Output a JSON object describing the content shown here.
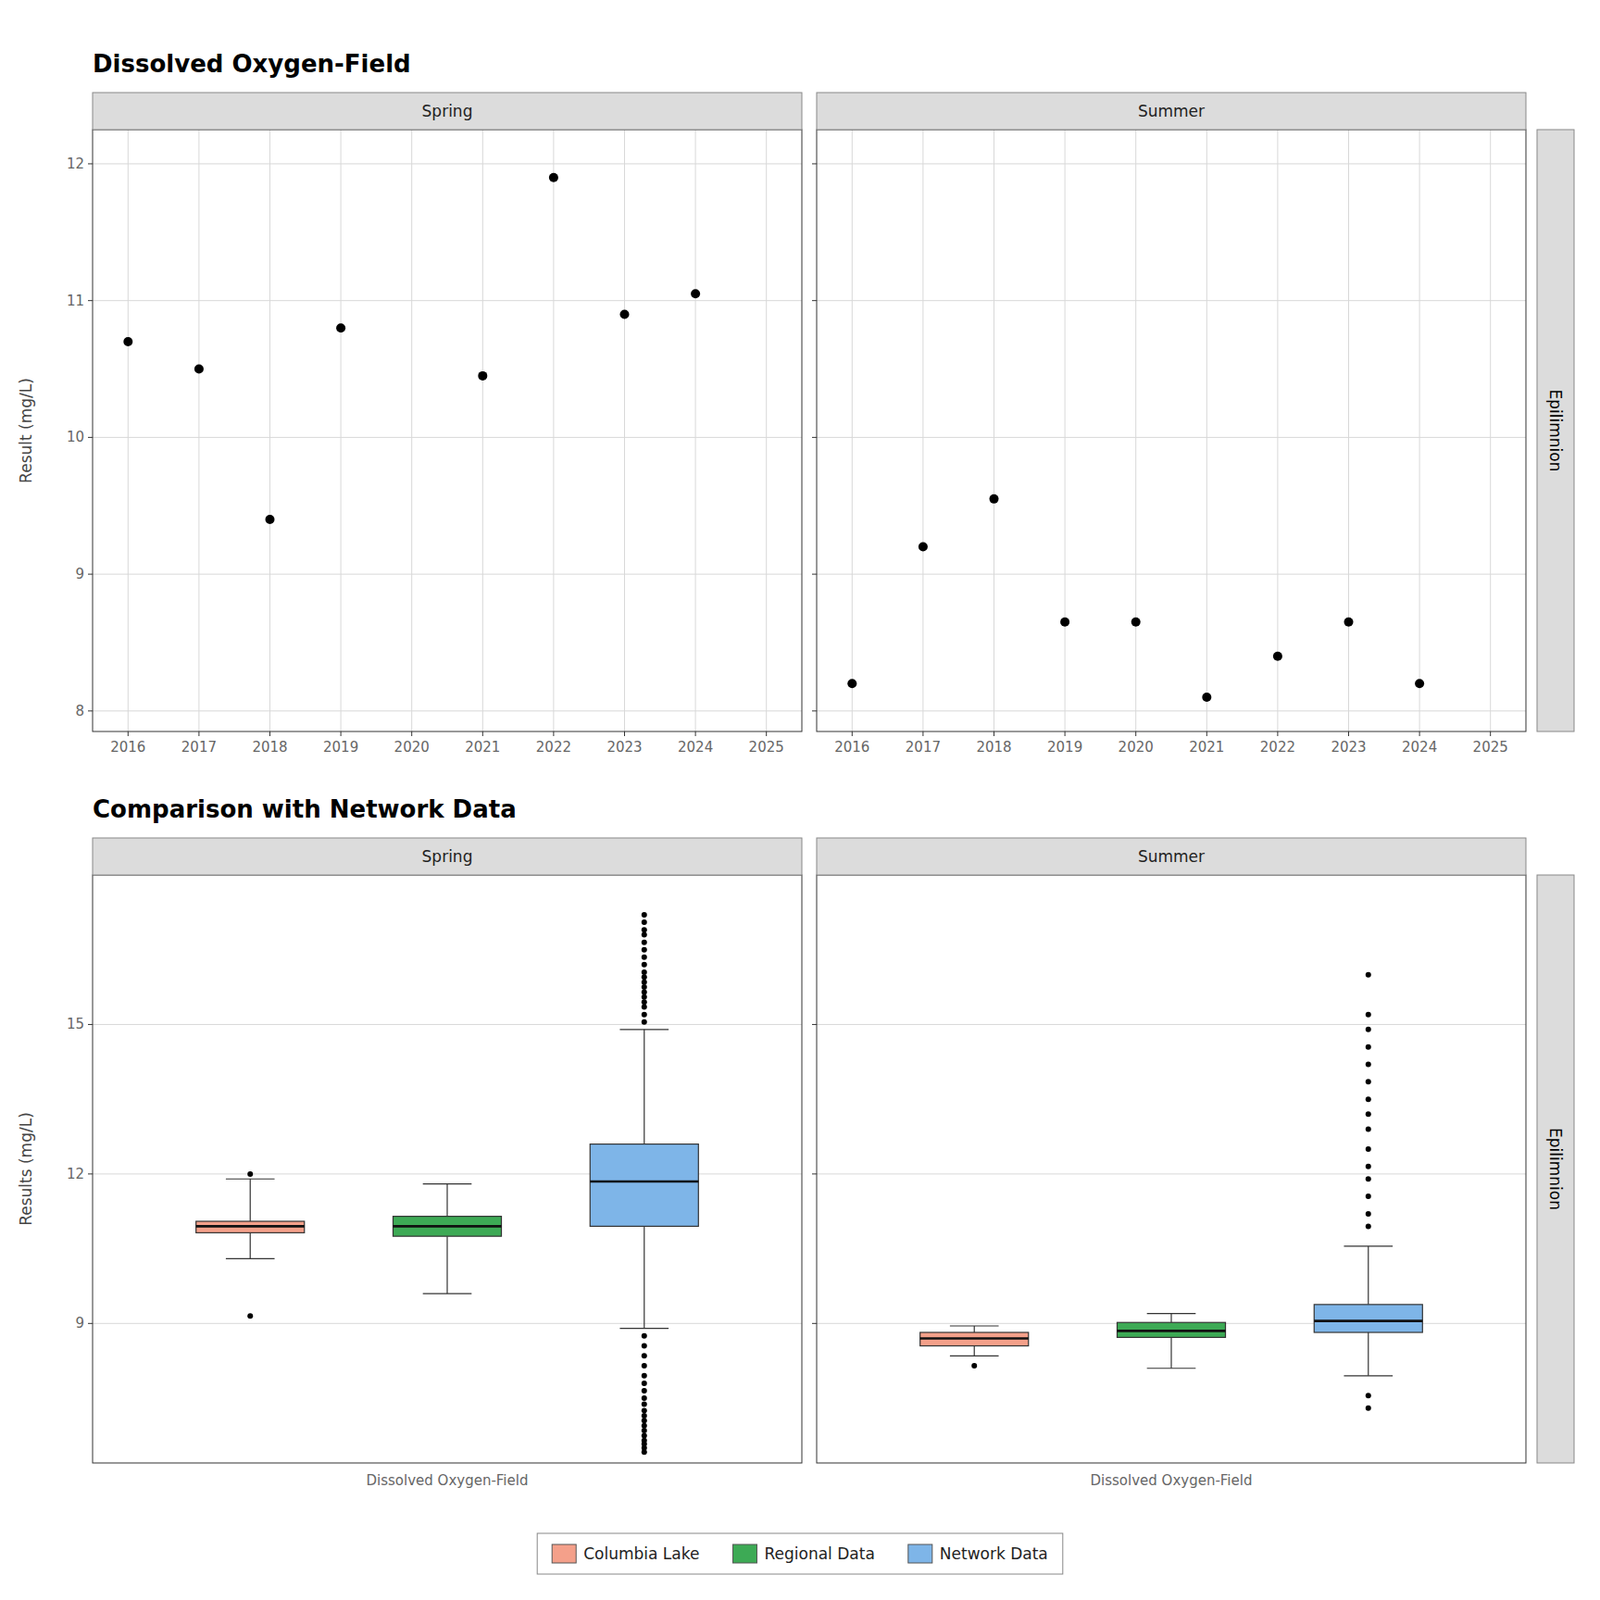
{
  "chart_data": [
    {
      "type": "scatter",
      "title": "Dissolved Oxygen-Field",
      "subtitle": "Spring",
      "y_label": "Result (mg/L)",
      "x": [
        2016,
        2017,
        2019,
        2021,
        2022,
        2023,
        2024,
        2018
      ],
      "values": [
        10.7,
        10.5,
        10.8,
        10.45,
        11.9,
        10.9,
        11.05,
        9.4
      ],
      "color": "black",
      "xlim": [
        2015.5,
        2025.5
      ],
      "xticks": [
        2016,
        2017,
        2018,
        2019,
        2020,
        2021,
        2022,
        2023,
        2024,
        2025
      ],
      "ylim": [
        7.85,
        12.25
      ],
      "yticks": [
        8,
        9,
        10,
        11,
        12
      ],
      "grid": true
    },
    {
      "type": "scatter",
      "subtitle": "Summer",
      "annotations": [
        "Epilimnion"
      ],
      "x": [
        2016,
        2017,
        2018,
        2019,
        2020,
        2021,
        2022,
        2023,
        2024
      ],
      "values": [
        8.2,
        9.2,
        9.55,
        8.65,
        8.65,
        8.1,
        8.4,
        8.65,
        8.2
      ],
      "color": "black",
      "xlim": [
        2015.5,
        2025.5
      ],
      "xticks": [
        2016,
        2017,
        2018,
        2019,
        2020,
        2021,
        2022,
        2023,
        2024,
        2025
      ],
      "ylim": [
        7.85,
        12.25
      ],
      "yticks": [
        8,
        9,
        10,
        11,
        12
      ],
      "grid": true,
      "tick_labels": "x"
    },
    {
      "type": "box",
      "title": "Comparison with Network Data",
      "subtitle": "Spring",
      "y_label": "Results (mg/L)",
      "categories": [
        "Dissolved Oxygen-Field"
      ],
      "series": [
        {
          "name": "Columbia Lake",
          "color": "#F4A08A",
          "median": 10.95,
          "q1": 10.82,
          "q3": 11.05,
          "whislo": 10.3,
          "whishi": 11.9,
          "fliers": [
            9.15,
            12.0
          ]
        },
        {
          "name": "Regional Data",
          "color": "#3DAA55",
          "median": 10.95,
          "q1": 10.75,
          "q3": 11.15,
          "whislo": 9.6,
          "whishi": 11.8,
          "fliers": []
        },
        {
          "name": "Network Data",
          "color": "#7EB5E8",
          "median": 11.85,
          "q1": 10.95,
          "q3": 12.6,
          "whislo": 8.9,
          "whishi": 14.9,
          "fliers_high": [
            15.05,
            15.2,
            15.35,
            15.45,
            15.55,
            15.65,
            15.75,
            15.85,
            15.95,
            16.05,
            16.2,
            16.35,
            16.5,
            16.65,
            16.8,
            16.9,
            17.05,
            17.2
          ],
          "fliers_low": [
            8.75,
            8.55,
            8.35,
            8.15,
            7.95,
            7.8,
            7.65,
            7.5,
            7.38,
            7.25,
            7.15,
            7.05,
            6.95,
            6.85,
            6.75,
            6.65,
            6.58,
            6.5,
            6.42
          ]
        }
      ],
      "ylim": [
        6.2,
        18.0
      ],
      "yticks": [
        9,
        12,
        15
      ],
      "grid": "y",
      "legend": "bottom"
    },
    {
      "type": "box",
      "subtitle": "Summer",
      "annotations": [
        "Epilimnion"
      ],
      "categories": [
        "Dissolved Oxygen-Field"
      ],
      "series": [
        {
          "color": "#F4A08A",
          "median": 8.7,
          "q1": 8.55,
          "q3": 8.82,
          "whislo": 8.35,
          "whishi": 8.95,
          "fliers": [
            8.15
          ]
        },
        {
          "color": "#3DAA55",
          "median": 8.85,
          "q1": 8.72,
          "q3": 9.02,
          "whislo": 8.1,
          "whishi": 9.2,
          "fliers": []
        },
        {
          "color": "#7EB5E8",
          "median": 9.05,
          "q1": 8.82,
          "q3": 9.38,
          "whislo": 7.95,
          "whishi": 10.55,
          "fliers_high": [
            10.95,
            11.2,
            11.55,
            11.9,
            12.15,
            12.5,
            12.9,
            13.2,
            13.5,
            13.85,
            14.2,
            14.55,
            14.9,
            15.2,
            16.0
          ],
          "fliers_low": [
            7.55,
            7.3
          ]
        }
      ],
      "ylim": [
        6.2,
        18.0
      ],
      "yticks": [
        9,
        12,
        15
      ],
      "grid": "y",
      "tick_labels": "x"
    }
  ]
}
